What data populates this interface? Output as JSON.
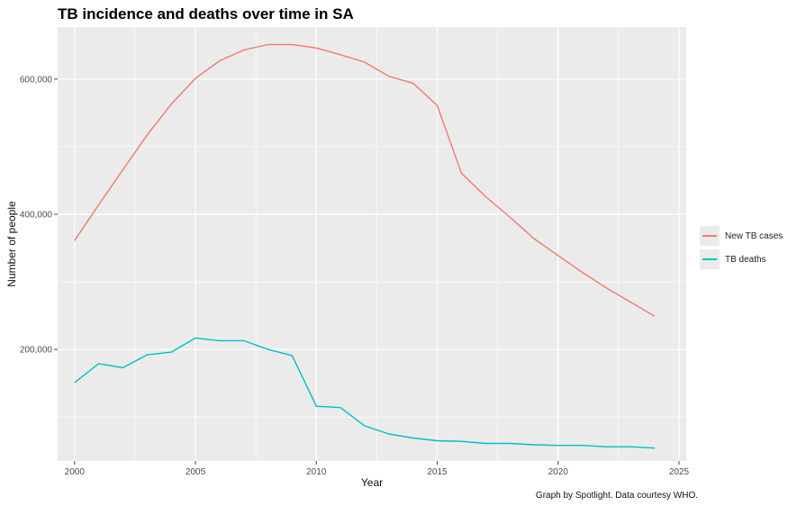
{
  "chart_data": {
    "type": "line",
    "title": "TB incidence and deaths over time in SA",
    "xlabel": "Year",
    "ylabel": "Number of people",
    "caption": "Graph by Spotlight. Data courtesy WHO.",
    "x": [
      2000,
      2001,
      2002,
      2003,
      2004,
      2005,
      2006,
      2007,
      2008,
      2009,
      2010,
      2011,
      2012,
      2013,
      2014,
      2015,
      2016,
      2017,
      2018,
      2019,
      2020,
      2021,
      2022,
      2023,
      2024
    ],
    "xlim": [
      1999.3,
      2025.3
    ],
    "ylim": [
      35000,
      677000
    ],
    "xticks": [
      2000,
      2005,
      2010,
      2015,
      2020,
      2025
    ],
    "xtick_labels": [
      "2000",
      "2005",
      "2010",
      "2015",
      "2020",
      "2025"
    ],
    "yticks": [
      200000,
      400000,
      600000
    ],
    "ytick_labels": [
      "200,000",
      "400,000",
      "600,000"
    ],
    "grid": true,
    "legend_position": "right",
    "series": [
      {
        "name": "New TB cases",
        "color": "#f8766d",
        "values": [
          361000,
          414000,
          466000,
          517000,
          563000,
          601000,
          627000,
          643000,
          651000,
          651000,
          646000,
          636000,
          625000,
          604000,
          594000,
          561000,
          461000,
          426000,
          396000,
          364000,
          339000,
          314000,
          291000,
          270000,
          249000
        ]
      },
      {
        "name": "TB deaths",
        "color": "#00bfc4",
        "values": [
          151000,
          179000,
          173000,
          192000,
          196000,
          217000,
          213000,
          213000,
          200000,
          191000,
          116000,
          114000,
          87000,
          75000,
          69000,
          65000,
          64000,
          61000,
          61000,
          59000,
          58000,
          58000,
          56000,
          56000,
          54000
        ]
      }
    ]
  }
}
